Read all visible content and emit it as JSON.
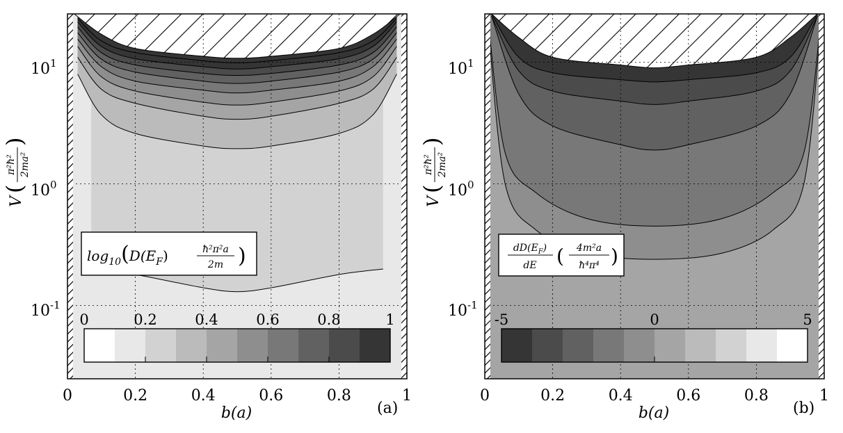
{
  "chart_data": [
    {
      "panel": "(a)",
      "type": "heatmap",
      "subtype": "filled-contour",
      "quantity_label": {
        "main": "log10",
        "expr": "( D(E_F) ħ²π²a / 2m )"
      },
      "xlabel": "b(a)",
      "ylabel": "V (π²ħ² / 2ma²)",
      "xlim": [
        0,
        1
      ],
      "ylim": [
        0.025,
        25
      ],
      "yscale": "log",
      "x_ticks": [
        "0",
        "0.2",
        "0.4",
        "0.6",
        "0.8",
        "1"
      ],
      "y_ticks": [
        "10^1",
        "10^0",
        "10^-1"
      ],
      "grid": true,
      "hatched_region": "top-center (undefined)",
      "colorbar": {
        "ticks": [
          "0",
          "0.2",
          "0.4",
          "0.6",
          "0.8",
          "1"
        ],
        "range": [
          0,
          1
        ],
        "levels": 10,
        "colors": [
          "#ffffff",
          "#e8e8e8",
          "#d2d2d2",
          "#bbbbbb",
          "#a5a5a5",
          "#8e8e8e",
          "#787878",
          "#616161",
          "#4b4b4b",
          "#353535"
        ]
      },
      "contours": [
        {
          "level": 0.1,
          "b": [
            0.07,
            0.2,
            0.4,
            0.5,
            0.6,
            0.8,
            0.93
          ],
          "V": [
            0.2,
            0.18,
            0.14,
            0.13,
            0.14,
            0.18,
            0.2
          ]
        },
        {
          "level": 0.2,
          "b": [
            0.03,
            0.1,
            0.2,
            0.4,
            0.5,
            0.6,
            0.8,
            0.9,
            0.97
          ],
          "V": [
            8,
            3.7,
            2.6,
            2.05,
            1.95,
            2.05,
            2.6,
            3.7,
            8
          ]
        },
        {
          "level": 0.3,
          "b": [
            0.03,
            0.1,
            0.2,
            0.4,
            0.5,
            0.6,
            0.8,
            0.9,
            0.97
          ],
          "V": [
            11,
            6,
            4.6,
            3.6,
            3.4,
            3.6,
            4.6,
            6,
            11
          ]
        },
        {
          "level": 0.4,
          "b": [
            0.03,
            0.1,
            0.2,
            0.4,
            0.5,
            0.6,
            0.8,
            0.9,
            0.97
          ],
          "V": [
            13.5,
            7.6,
            5.8,
            4.7,
            4.45,
            4.7,
            5.8,
            7.6,
            13.5
          ]
        },
        {
          "level": 0.5,
          "b": [
            0.03,
            0.1,
            0.2,
            0.4,
            0.5,
            0.6,
            0.8,
            0.9,
            0.97
          ],
          "V": [
            15.5,
            9.2,
            7,
            5.9,
            5.6,
            5.9,
            7,
            9.2,
            15.5
          ]
        },
        {
          "level": 0.6,
          "b": [
            0.03,
            0.1,
            0.2,
            0.4,
            0.5,
            0.6,
            0.8,
            0.9,
            0.97
          ],
          "V": [
            17.5,
            10.6,
            8.3,
            7.0,
            6.7,
            7.0,
            8.3,
            10.6,
            17.5
          ]
        },
        {
          "level": 0.7,
          "b": [
            0.03,
            0.1,
            0.2,
            0.4,
            0.5,
            0.6,
            0.8,
            0.9,
            0.97
          ],
          "V": [
            19.5,
            12,
            9.5,
            8.1,
            7.8,
            8.1,
            9.5,
            12,
            19.5
          ]
        },
        {
          "level": 0.8,
          "b": [
            0.03,
            0.1,
            0.2,
            0.4,
            0.5,
            0.6,
            0.8,
            0.9,
            0.97
          ],
          "V": [
            21.5,
            13.5,
            10.7,
            9.2,
            8.8,
            9.2,
            10.7,
            13.5,
            21.5
          ]
        },
        {
          "level": 0.9,
          "b": [
            0.03,
            0.1,
            0.2,
            0.4,
            0.5,
            0.6,
            0.8,
            0.9,
            0.97
          ],
          "V": [
            23,
            15,
            12,
            10.3,
            9.9,
            10.3,
            12,
            15,
            23
          ]
        }
      ],
      "hatch_boundary": {
        "b": [
          0.02,
          0.1,
          0.2,
          0.4,
          0.5,
          0.6,
          0.8,
          0.9,
          0.98
        ],
        "V": [
          25,
          17,
          13,
          11.2,
          10.8,
          11.2,
          13,
          17,
          25
        ]
      }
    },
    {
      "panel": "(b)",
      "type": "heatmap",
      "subtype": "filled-contour",
      "quantity_label": {
        "main": "dD(E_F)/dE",
        "expr": "( 4m²a / ħ⁴π⁴ )"
      },
      "xlabel": "b(a)",
      "ylabel": "V (π²ħ² / 2ma²)",
      "xlim": [
        0,
        1
      ],
      "ylim": [
        0.025,
        25
      ],
      "yscale": "log",
      "x_ticks": [
        "0",
        "0.2",
        "0.4",
        "0.6",
        "0.8",
        "1"
      ],
      "y_ticks": [
        "10^1",
        "10^0",
        "10^-1"
      ],
      "grid": true,
      "hatched_region": "top-center (undefined)",
      "colorbar": {
        "ticks": [
          "-5",
          "0",
          "5"
        ],
        "range": [
          -5,
          5
        ],
        "levels": 10,
        "colors": [
          "#353535",
          "#4b4b4b",
          "#616161",
          "#787878",
          "#8e8e8e",
          "#a5a5a5",
          "#bbbbbb",
          "#d2d2d2",
          "#e8e8e8",
          "#ffffff"
        ]
      },
      "contours": [
        {
          "level": 0,
          "b": [
            0.01,
            0.06,
            0.15,
            0.3,
            0.5,
            0.7,
            0.85,
            0.94,
            0.99
          ],
          "V": [
            20,
            1.0,
            0.42,
            0.27,
            0.24,
            0.27,
            0.42,
            1.0,
            20
          ]
        },
        {
          "level": -1,
          "b": [
            0.01,
            0.06,
            0.15,
            0.3,
            0.5,
            0.7,
            0.85,
            0.94,
            0.99
          ],
          "V": [
            22,
            1.8,
            0.85,
            0.52,
            0.45,
            0.52,
            0.85,
            1.8,
            22
          ]
        },
        {
          "level": -2,
          "b": [
            0.02,
            0.1,
            0.2,
            0.4,
            0.5,
            0.6,
            0.8,
            0.9,
            0.98
          ],
          "V": [
            24,
            5.5,
            3.0,
            2.1,
            1.9,
            2.1,
            3.0,
            5.5,
            24
          ]
        },
        {
          "level": -3,
          "b": [
            0.02,
            0.1,
            0.2,
            0.4,
            0.5,
            0.6,
            0.8,
            0.9,
            0.98
          ],
          "V": [
            24,
            8.5,
            5.8,
            4.8,
            4.5,
            4.8,
            5.8,
            8.5,
            24
          ]
        },
        {
          "level": -4,
          "b": [
            0.02,
            0.1,
            0.2,
            0.4,
            0.5,
            0.6,
            0.8,
            0.9,
            0.98
          ],
          "V": [
            25,
            11,
            8.2,
            7.2,
            6.9,
            7.2,
            8.2,
            11,
            25
          ]
        }
      ],
      "hatch_boundary": {
        "b": [
          0.02,
          0.1,
          0.2,
          0.4,
          0.5,
          0.6,
          0.8,
          0.9,
          0.98
        ],
        "V": [
          25,
          16,
          11,
          9.5,
          9.0,
          9.5,
          11,
          16,
          25
        ]
      }
    }
  ],
  "panel_labels": [
    "(a)",
    "(b)"
  ],
  "x_axis_label": "b(a)",
  "y_axis_label_main": "V",
  "y_axis_label_frac_num": "π²ħ²",
  "y_axis_label_frac_den": "2ma²",
  "y_tick_10": "10",
  "y_tick_exp": [
    "1",
    "0",
    "-1"
  ],
  "box_a": {
    "fn": "log",
    "sub": "10",
    "D": "D(E",
    "F": "F",
    "close": ")",
    "num": "ħ²π²a",
    "den": "2m"
  },
  "box_b": {
    "num": "dD(E",
    "sub": "F",
    "numclose": ")",
    "den": "dE",
    "pnum": "4m²a",
    "pden": "ħ⁴π⁴"
  },
  "colors": {
    "background_a": "#e8e8e8",
    "background_b": "#a5a5a5",
    "contour_line": "#000000",
    "hatch": "#000000"
  }
}
